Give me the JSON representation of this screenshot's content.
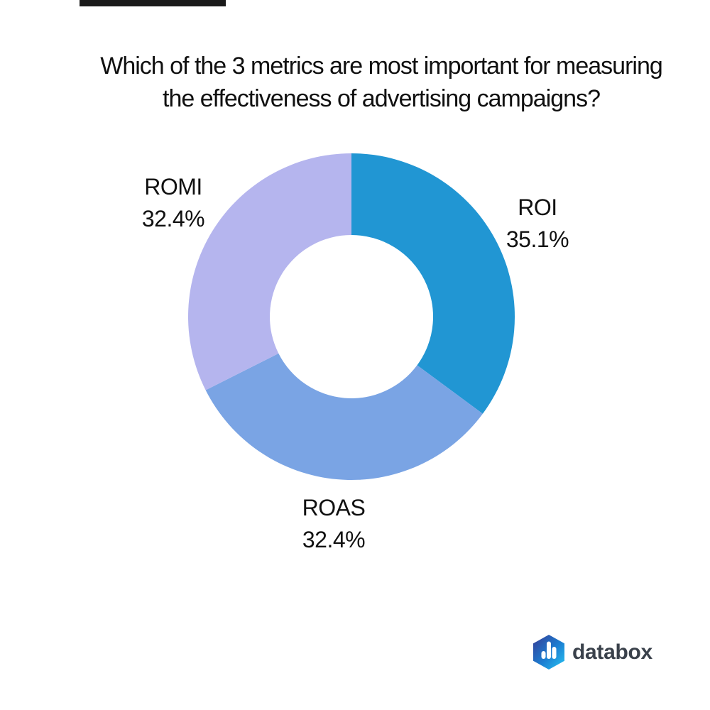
{
  "page": {
    "background_color": "#ffffff"
  },
  "decorations": {
    "top_redaction_bar_color": "#1a1a1a"
  },
  "chart_data": {
    "type": "donut",
    "title": "Which of the 3 metrics are most important for measuring the effectiveness of advertising campaigns?",
    "title_lines": [
      "Which of the 3 metrics are most important for measuring",
      "the effectiveness of advertising campaigns?"
    ],
    "slices": [
      {
        "label": "ROI",
        "value": 35.1,
        "display": "35.1%",
        "color": "#2196d3"
      },
      {
        "label": "ROAS",
        "value": 32.4,
        "display": "32.4%",
        "color": "#7aa4e4"
      },
      {
        "label": "ROMI",
        "value": 32.4,
        "display": "32.4%",
        "color": "#b5b5ee"
      }
    ],
    "start_angle_deg": 0,
    "direction": "clockwise",
    "inner_radius_ratio": 0.5,
    "hole_color": "#ffffff",
    "legend": "none",
    "label_style": "outside-two-line"
  },
  "logo": {
    "text": "databox",
    "text_color": "#3a414b",
    "icon_gradient": [
      "#363a94",
      "#1c7fd2",
      "#27c5f2"
    ],
    "icon_bar_color": "#ffffff"
  }
}
